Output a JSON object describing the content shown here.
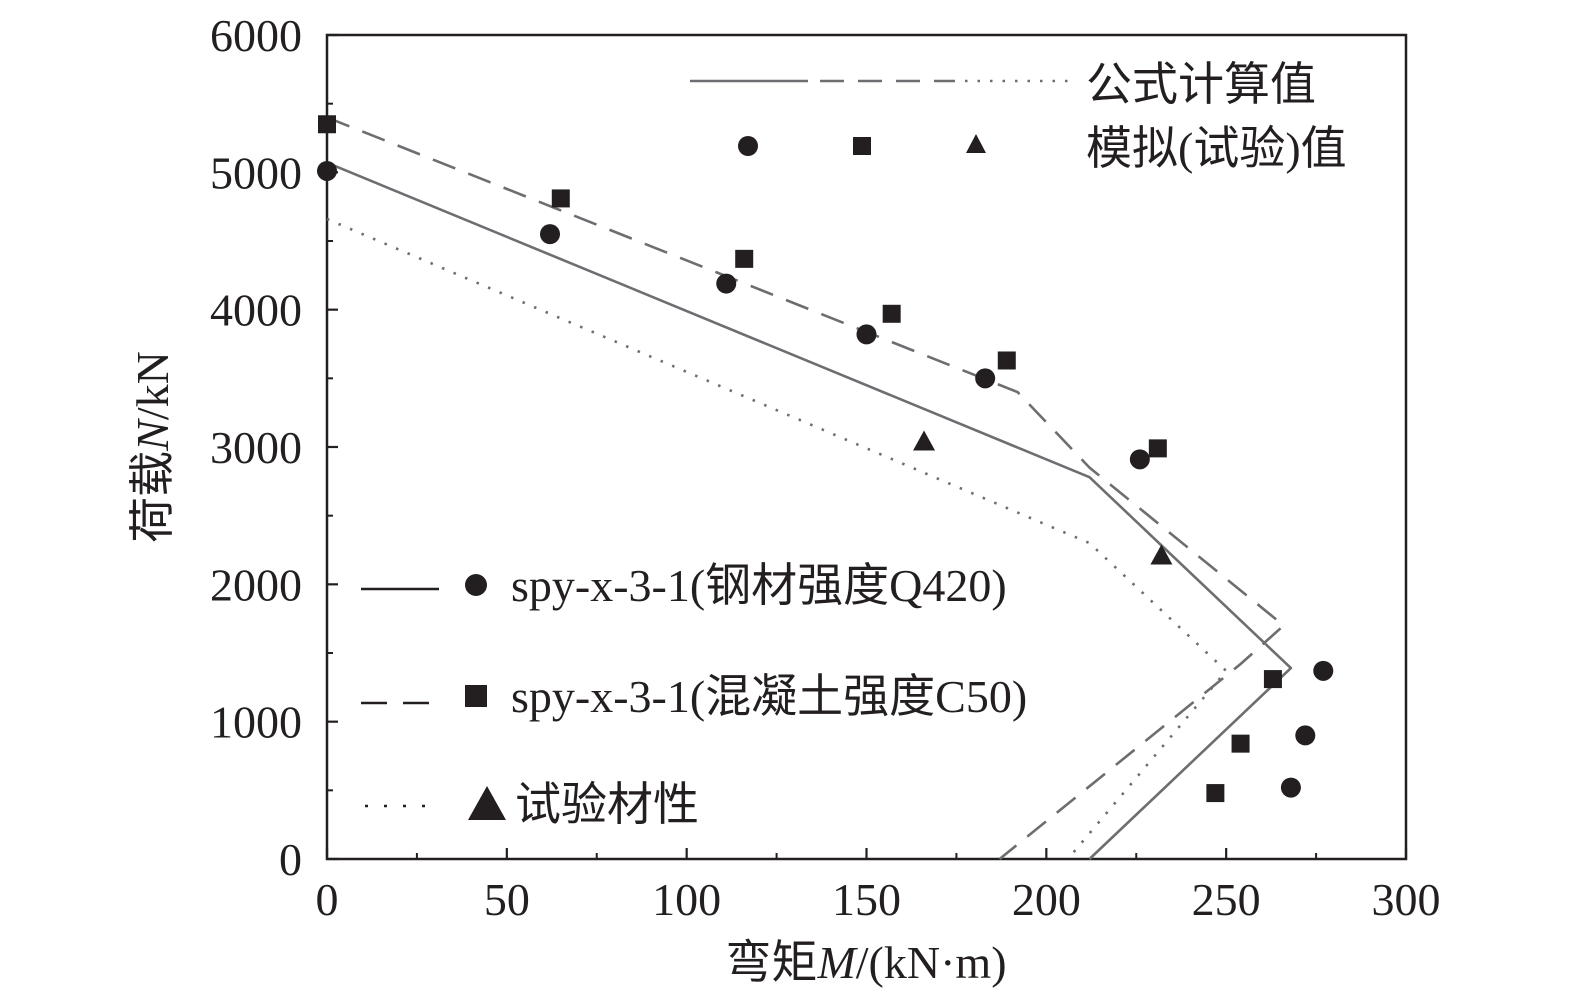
{
  "chart_data": {
    "type": "line",
    "xlabel": {
      "prefix": "弯矩",
      "var": "M",
      "suffix": "/(kN·m)"
    },
    "ylabel": {
      "prefix": "荷载",
      "var": "N",
      "suffix": "/kN"
    },
    "xlim": [
      0,
      300
    ],
    "ylim": [
      0,
      6000
    ],
    "x_ticks": [
      0,
      50,
      100,
      150,
      200,
      250,
      300
    ],
    "y_ticks": [
      0,
      1000,
      2000,
      3000,
      4000,
      5000,
      6000
    ],
    "grid": false,
    "colors": {
      "line": "#6d6e71",
      "marker": "#231f20",
      "axis": "#231f20"
    },
    "legend_top": {
      "line_label": "公式计算值",
      "marker_label": "模拟(试验)值"
    },
    "series": [
      {
        "name": "spy-x-3-1(钢材强度Q420)",
        "line_style": "solid",
        "marker": "circle",
        "curve": [
          [
            0,
            5070
          ],
          [
            212,
            2780
          ],
          [
            268,
            1390
          ],
          [
            212,
            0
          ]
        ],
        "points": [
          [
            0,
            5010
          ],
          [
            62,
            4550
          ],
          [
            111,
            4190
          ],
          [
            150,
            3820
          ],
          [
            183,
            3500
          ],
          [
            226,
            2910
          ],
          [
            277,
            1370
          ],
          [
            272,
            900
          ],
          [
            268,
            520
          ]
        ]
      },
      {
        "name": "spy-x-3-1(混凝土强度C50)",
        "line_style": "dashed",
        "marker": "square",
        "curve": [
          [
            0,
            5400
          ],
          [
            192,
            3400
          ],
          [
            212,
            2850
          ],
          [
            266,
            1700
          ],
          [
            254,
            1420
          ],
          [
            187,
            0
          ]
        ],
        "points": [
          [
            0,
            5350
          ],
          [
            65,
            4810
          ],
          [
            116,
            4370
          ],
          [
            157,
            3970
          ],
          [
            189,
            3630
          ],
          [
            231,
            2990
          ],
          [
            263,
            1310
          ],
          [
            254,
            840
          ],
          [
            247,
            480
          ]
        ]
      },
      {
        "name": "试验材性",
        "line_style": "dotted",
        "marker": "triangle",
        "curve": [
          [
            0,
            4660
          ],
          [
            212,
            2300
          ],
          [
            250,
            1370
          ],
          [
            206,
            0
          ]
        ],
        "points": [
          [
            166,
            3040
          ],
          [
            232,
            2210
          ]
        ]
      }
    ]
  }
}
